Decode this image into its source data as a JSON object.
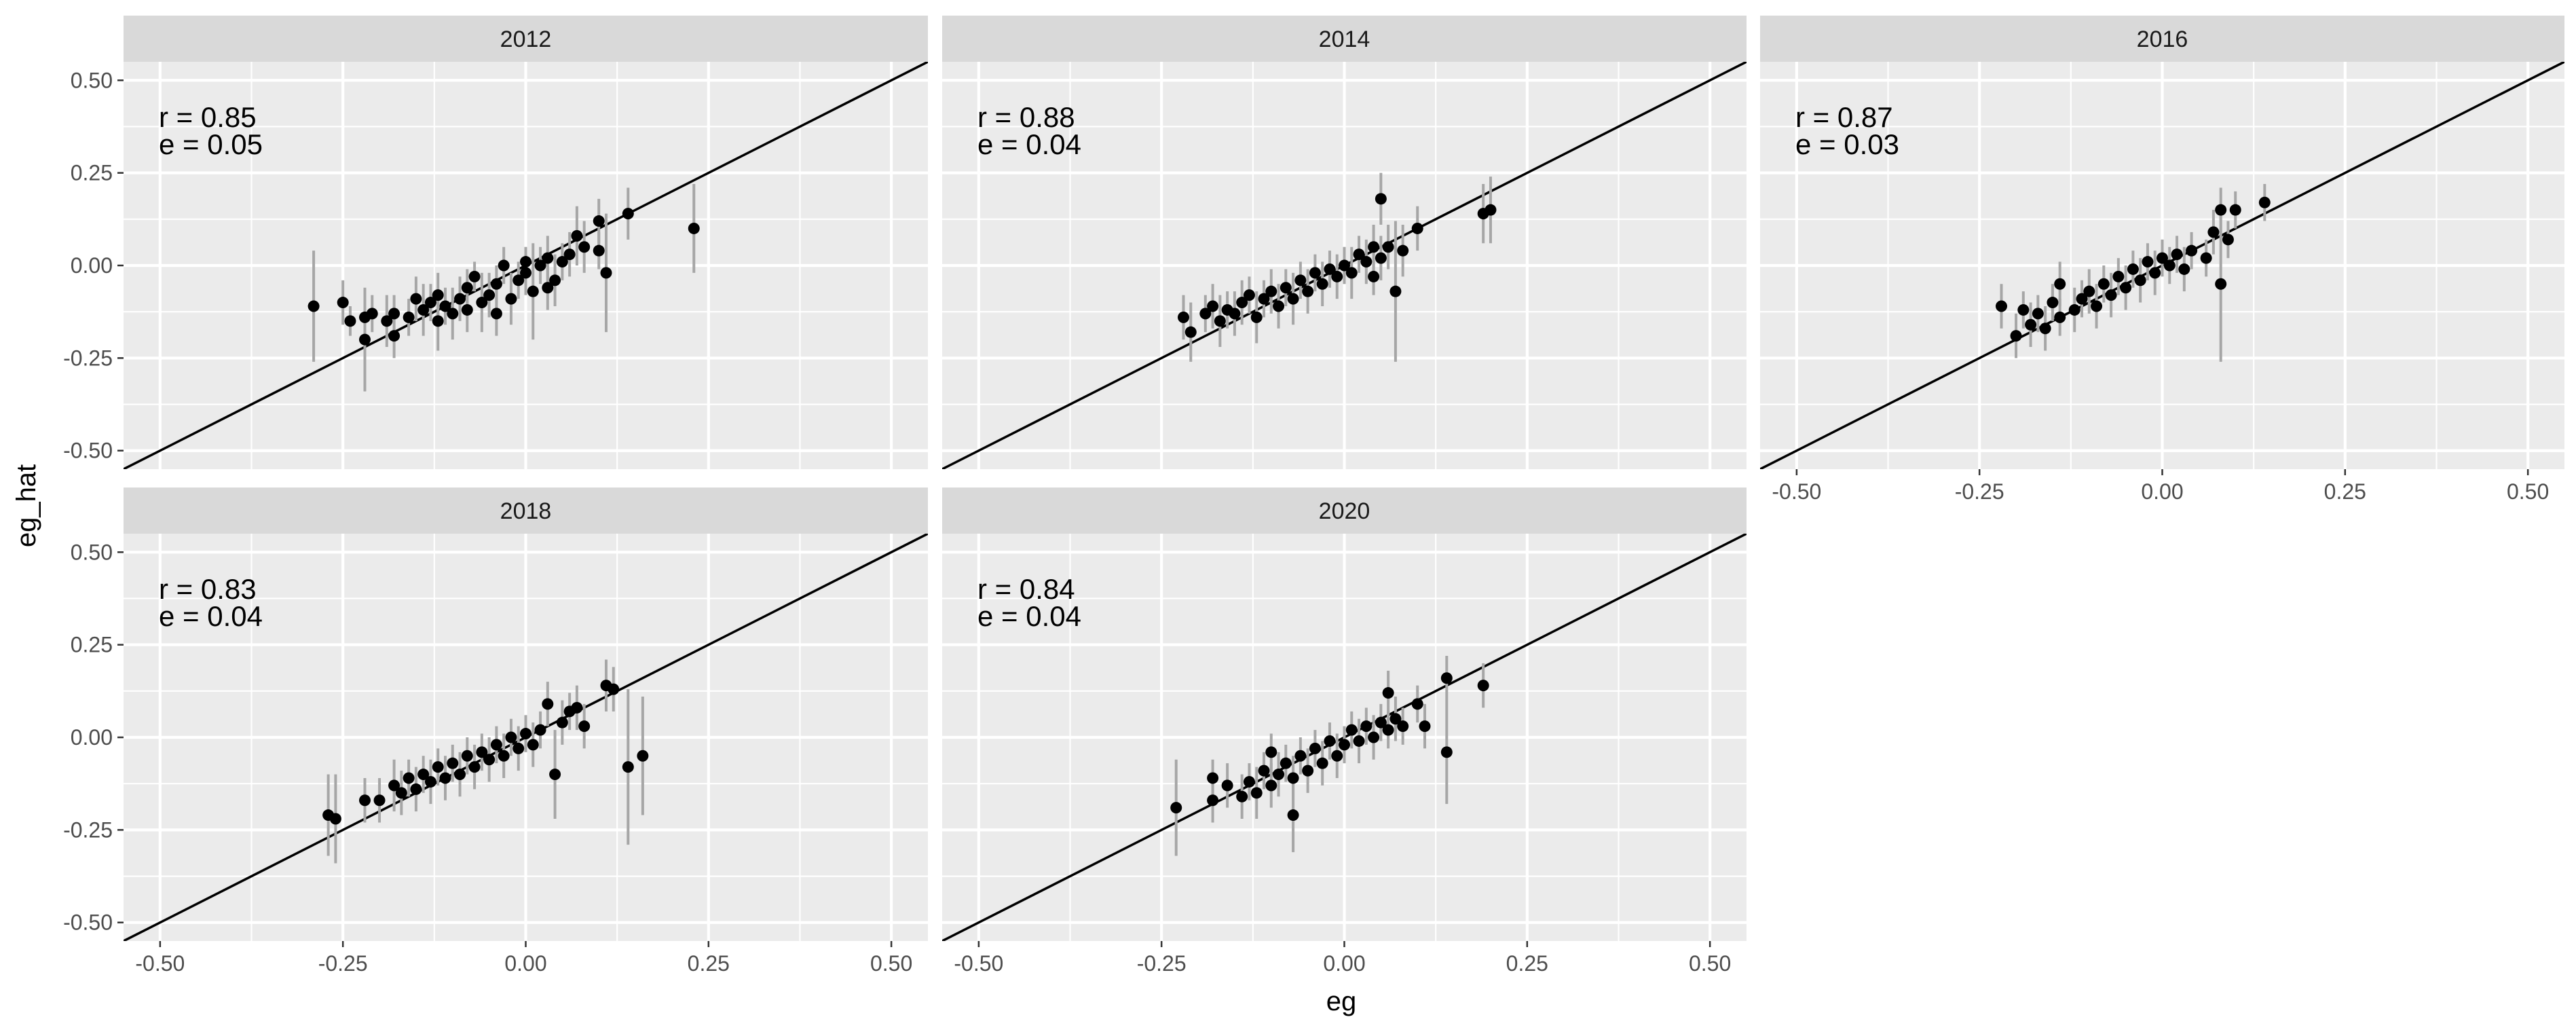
{
  "chart_data": {
    "type": "scatter",
    "xlabel": "eg",
    "ylabel": "eg_hat",
    "xlim": [
      -0.55,
      0.55
    ],
    "ylim": [
      -0.55,
      0.55
    ],
    "x_ticks": [
      "-0.50",
      "-0.25",
      "0.00",
      "0.25",
      "0.50"
    ],
    "y_ticks": [
      "-0.50",
      "-0.25",
      "0.00",
      "0.25",
      "0.50"
    ],
    "x_tick_values": [
      -0.5,
      -0.25,
      0,
      0.25,
      0.5
    ],
    "y_tick_values": [
      -0.5,
      -0.25,
      0,
      0.25,
      0.5
    ],
    "reference_line": {
      "slope": 1,
      "intercept": 0
    },
    "grid": true,
    "colors": {
      "points": "#000000",
      "error_bars": "#a6a6a6",
      "panel": "#ebebeb",
      "strip": "#d9d9d9"
    },
    "panels": [
      {
        "title": "2012",
        "annotation_r": "r = 0.85",
        "annotation_e": "e = 0.05",
        "points": [
          {
            "x": -0.29,
            "y": -0.11,
            "err": 0.15
          },
          {
            "x": -0.25,
            "y": -0.1,
            "err": 0.06
          },
          {
            "x": -0.24,
            "y": -0.15,
            "err": 0.04
          },
          {
            "x": -0.22,
            "y": -0.2,
            "err": 0.14
          },
          {
            "x": -0.22,
            "y": -0.14,
            "err": 0.06
          },
          {
            "x": -0.21,
            "y": -0.13,
            "err": 0.05
          },
          {
            "x": -0.19,
            "y": -0.15,
            "err": 0.07
          },
          {
            "x": -0.18,
            "y": -0.19,
            "err": 0.06
          },
          {
            "x": -0.18,
            "y": -0.13,
            "err": 0.05
          },
          {
            "x": -0.16,
            "y": -0.14,
            "err": 0.05
          },
          {
            "x": -0.15,
            "y": -0.09,
            "err": 0.06
          },
          {
            "x": -0.14,
            "y": -0.12,
            "err": 0.07
          },
          {
            "x": -0.13,
            "y": -0.1,
            "err": 0.05
          },
          {
            "x": -0.12,
            "y": -0.15,
            "err": 0.08
          },
          {
            "x": -0.12,
            "y": -0.08,
            "err": 0.06
          },
          {
            "x": -0.11,
            "y": -0.11,
            "err": 0.05
          },
          {
            "x": -0.1,
            "y": -0.13,
            "err": 0.07
          },
          {
            "x": -0.09,
            "y": -0.09,
            "err": 0.06
          },
          {
            "x": -0.08,
            "y": -0.06,
            "err": 0.05
          },
          {
            "x": -0.08,
            "y": -0.12,
            "err": 0.06
          },
          {
            "x": -0.07,
            "y": -0.03,
            "err": 0.04
          },
          {
            "x": -0.06,
            "y": -0.1,
            "err": 0.08
          },
          {
            "x": -0.05,
            "y": -0.08,
            "err": 0.06
          },
          {
            "x": -0.04,
            "y": -0.05,
            "err": 0.05
          },
          {
            "x": -0.04,
            "y": -0.13,
            "err": 0.06
          },
          {
            "x": -0.03,
            "y": 0.0,
            "err": 0.05
          },
          {
            "x": -0.02,
            "y": -0.09,
            "err": 0.07
          },
          {
            "x": -0.01,
            "y": -0.04,
            "err": 0.05
          },
          {
            "x": 0.0,
            "y": -0.02,
            "err": 0.06
          },
          {
            "x": 0.0,
            "y": 0.01,
            "err": 0.04
          },
          {
            "x": 0.01,
            "y": -0.07,
            "err": 0.13
          },
          {
            "x": 0.02,
            "y": 0.0,
            "err": 0.05
          },
          {
            "x": 0.03,
            "y": -0.06,
            "err": 0.06
          },
          {
            "x": 0.03,
            "y": 0.02,
            "err": 0.06
          },
          {
            "x": 0.04,
            "y": -0.04,
            "err": 0.07
          },
          {
            "x": 0.05,
            "y": 0.01,
            "err": 0.05
          },
          {
            "x": 0.06,
            "y": 0.03,
            "err": 0.06
          },
          {
            "x": 0.07,
            "y": 0.08,
            "err": 0.08
          },
          {
            "x": 0.08,
            "y": 0.05,
            "err": 0.07
          },
          {
            "x": 0.1,
            "y": 0.12,
            "err": 0.06
          },
          {
            "x": 0.1,
            "y": 0.04,
            "err": 0.05
          },
          {
            "x": 0.11,
            "y": -0.02,
            "err": 0.16
          },
          {
            "x": 0.14,
            "y": 0.14,
            "err": 0.07
          },
          {
            "x": 0.23,
            "y": 0.1,
            "err": 0.12
          }
        ]
      },
      {
        "title": "2014",
        "annotation_r": "r = 0.88",
        "annotation_e": "e = 0.04",
        "points": [
          {
            "x": -0.22,
            "y": -0.14,
            "err": 0.06
          },
          {
            "x": -0.21,
            "y": -0.18,
            "err": 0.08
          },
          {
            "x": -0.19,
            "y": -0.13,
            "err": 0.05
          },
          {
            "x": -0.18,
            "y": -0.11,
            "err": 0.06
          },
          {
            "x": -0.17,
            "y": -0.15,
            "err": 0.07
          },
          {
            "x": -0.16,
            "y": -0.12,
            "err": 0.05
          },
          {
            "x": -0.15,
            "y": -0.13,
            "err": 0.06
          },
          {
            "x": -0.14,
            "y": -0.1,
            "err": 0.06
          },
          {
            "x": -0.13,
            "y": -0.08,
            "err": 0.05
          },
          {
            "x": -0.12,
            "y": -0.14,
            "err": 0.07
          },
          {
            "x": -0.11,
            "y": -0.09,
            "err": 0.05
          },
          {
            "x": -0.1,
            "y": -0.07,
            "err": 0.06
          },
          {
            "x": -0.09,
            "y": -0.11,
            "err": 0.06
          },
          {
            "x": -0.08,
            "y": -0.06,
            "err": 0.05
          },
          {
            "x": -0.07,
            "y": -0.09,
            "err": 0.07
          },
          {
            "x": -0.06,
            "y": -0.04,
            "err": 0.05
          },
          {
            "x": -0.05,
            "y": -0.07,
            "err": 0.06
          },
          {
            "x": -0.04,
            "y": -0.02,
            "err": 0.05
          },
          {
            "x": -0.03,
            "y": -0.05,
            "err": 0.06
          },
          {
            "x": -0.02,
            "y": -0.01,
            "err": 0.05
          },
          {
            "x": -0.01,
            "y": -0.03,
            "err": 0.06
          },
          {
            "x": 0.0,
            "y": 0.0,
            "err": 0.05
          },
          {
            "x": 0.01,
            "y": -0.02,
            "err": 0.07
          },
          {
            "x": 0.02,
            "y": 0.03,
            "err": 0.05
          },
          {
            "x": 0.03,
            "y": 0.01,
            "err": 0.06
          },
          {
            "x": 0.04,
            "y": 0.05,
            "err": 0.06
          },
          {
            "x": 0.04,
            "y": -0.03,
            "err": 0.05
          },
          {
            "x": 0.05,
            "y": 0.02,
            "err": 0.06
          },
          {
            "x": 0.05,
            "y": 0.18,
            "err": 0.07
          },
          {
            "x": 0.06,
            "y": 0.05,
            "err": 0.06
          },
          {
            "x": 0.07,
            "y": -0.07,
            "err": 0.19
          },
          {
            "x": 0.08,
            "y": 0.04,
            "err": 0.07
          },
          {
            "x": 0.1,
            "y": 0.1,
            "err": 0.06
          },
          {
            "x": 0.19,
            "y": 0.14,
            "err": 0.08
          },
          {
            "x": 0.2,
            "y": 0.15,
            "err": 0.09
          }
        ]
      },
      {
        "title": "2016",
        "annotation_r": "r = 0.87",
        "annotation_e": "e = 0.03",
        "points": [
          {
            "x": -0.22,
            "y": -0.11,
            "err": 0.06
          },
          {
            "x": -0.2,
            "y": -0.19,
            "err": 0.06
          },
          {
            "x": -0.19,
            "y": -0.12,
            "err": 0.05
          },
          {
            "x": -0.18,
            "y": -0.16,
            "err": 0.06
          },
          {
            "x": -0.17,
            "y": -0.13,
            "err": 0.05
          },
          {
            "x": -0.16,
            "y": -0.17,
            "err": 0.06
          },
          {
            "x": -0.15,
            "y": -0.1,
            "err": 0.05
          },
          {
            "x": -0.14,
            "y": -0.05,
            "err": 0.06
          },
          {
            "x": -0.14,
            "y": -0.14,
            "err": 0.05
          },
          {
            "x": -0.12,
            "y": -0.12,
            "err": 0.06
          },
          {
            "x": -0.11,
            "y": -0.09,
            "err": 0.05
          },
          {
            "x": -0.1,
            "y": -0.07,
            "err": 0.06
          },
          {
            "x": -0.09,
            "y": -0.11,
            "err": 0.06
          },
          {
            "x": -0.08,
            "y": -0.05,
            "err": 0.05
          },
          {
            "x": -0.07,
            "y": -0.08,
            "err": 0.06
          },
          {
            "x": -0.06,
            "y": -0.03,
            "err": 0.05
          },
          {
            "x": -0.05,
            "y": -0.06,
            "err": 0.06
          },
          {
            "x": -0.04,
            "y": -0.01,
            "err": 0.05
          },
          {
            "x": -0.03,
            "y": -0.04,
            "err": 0.06
          },
          {
            "x": -0.02,
            "y": 0.01,
            "err": 0.05
          },
          {
            "x": -0.01,
            "y": -0.02,
            "err": 0.06
          },
          {
            "x": 0.0,
            "y": 0.02,
            "err": 0.05
          },
          {
            "x": 0.01,
            "y": 0.0,
            "err": 0.05
          },
          {
            "x": 0.02,
            "y": 0.03,
            "err": 0.05
          },
          {
            "x": 0.03,
            "y": -0.01,
            "err": 0.06
          },
          {
            "x": 0.04,
            "y": 0.04,
            "err": 0.05
          },
          {
            "x": 0.06,
            "y": 0.02,
            "err": 0.05
          },
          {
            "x": 0.07,
            "y": 0.09,
            "err": 0.06
          },
          {
            "x": 0.08,
            "y": -0.05,
            "err": 0.21
          },
          {
            "x": 0.08,
            "y": 0.15,
            "err": 0.06
          },
          {
            "x": 0.09,
            "y": 0.07,
            "err": 0.05
          },
          {
            "x": 0.1,
            "y": 0.15,
            "err": 0.05
          },
          {
            "x": 0.14,
            "y": 0.17,
            "err": 0.05
          }
        ]
      },
      {
        "title": "2018",
        "annotation_r": "r = 0.83",
        "annotation_e": "e = 0.04",
        "points": [
          {
            "x": -0.27,
            "y": -0.21,
            "err": 0.11
          },
          {
            "x": -0.26,
            "y": -0.22,
            "err": 0.12
          },
          {
            "x": -0.22,
            "y": -0.17,
            "err": 0.06
          },
          {
            "x": -0.2,
            "y": -0.17,
            "err": 0.06
          },
          {
            "x": -0.18,
            "y": -0.13,
            "err": 0.07
          },
          {
            "x": -0.17,
            "y": -0.15,
            "err": 0.06
          },
          {
            "x": -0.16,
            "y": -0.11,
            "err": 0.05
          },
          {
            "x": -0.15,
            "y": -0.14,
            "err": 0.06
          },
          {
            "x": -0.14,
            "y": -0.1,
            "err": 0.05
          },
          {
            "x": -0.13,
            "y": -0.12,
            "err": 0.06
          },
          {
            "x": -0.12,
            "y": -0.08,
            "err": 0.05
          },
          {
            "x": -0.11,
            "y": -0.11,
            "err": 0.06
          },
          {
            "x": -0.1,
            "y": -0.07,
            "err": 0.05
          },
          {
            "x": -0.09,
            "y": -0.1,
            "err": 0.06
          },
          {
            "x": -0.08,
            "y": -0.05,
            "err": 0.05
          },
          {
            "x": -0.07,
            "y": -0.08,
            "err": 0.06
          },
          {
            "x": -0.06,
            "y": -0.04,
            "err": 0.05
          },
          {
            "x": -0.05,
            "y": -0.06,
            "err": 0.06
          },
          {
            "x": -0.04,
            "y": -0.02,
            "err": 0.05
          },
          {
            "x": -0.03,
            "y": -0.05,
            "err": 0.06
          },
          {
            "x": -0.02,
            "y": 0.0,
            "err": 0.05
          },
          {
            "x": -0.01,
            "y": -0.03,
            "err": 0.06
          },
          {
            "x": 0.0,
            "y": 0.01,
            "err": 0.05
          },
          {
            "x": 0.01,
            "y": -0.02,
            "err": 0.06
          },
          {
            "x": 0.02,
            "y": 0.02,
            "err": 0.05
          },
          {
            "x": 0.03,
            "y": 0.09,
            "err": 0.06
          },
          {
            "x": 0.04,
            "y": -0.1,
            "err": 0.12
          },
          {
            "x": 0.05,
            "y": 0.04,
            "err": 0.06
          },
          {
            "x": 0.06,
            "y": 0.07,
            "err": 0.05
          },
          {
            "x": 0.07,
            "y": 0.08,
            "err": 0.06
          },
          {
            "x": 0.08,
            "y": 0.03,
            "err": 0.06
          },
          {
            "x": 0.11,
            "y": 0.14,
            "err": 0.07
          },
          {
            "x": 0.12,
            "y": 0.13,
            "err": 0.06
          },
          {
            "x": 0.14,
            "y": -0.08,
            "err": 0.21
          },
          {
            "x": 0.16,
            "y": -0.05,
            "err": 0.16
          }
        ]
      },
      {
        "title": "2020",
        "annotation_r": "r = 0.84",
        "annotation_e": "e = 0.04",
        "points": [
          {
            "x": -0.23,
            "y": -0.19,
            "err": 0.13
          },
          {
            "x": -0.18,
            "y": -0.17,
            "err": 0.06
          },
          {
            "x": -0.18,
            "y": -0.11,
            "err": 0.05
          },
          {
            "x": -0.16,
            "y": -0.13,
            "err": 0.06
          },
          {
            "x": -0.14,
            "y": -0.16,
            "err": 0.06
          },
          {
            "x": -0.13,
            "y": -0.12,
            "err": 0.05
          },
          {
            "x": -0.12,
            "y": -0.15,
            "err": 0.07
          },
          {
            "x": -0.11,
            "y": -0.09,
            "err": 0.05
          },
          {
            "x": -0.1,
            "y": -0.13,
            "err": 0.06
          },
          {
            "x": -0.1,
            "y": -0.04,
            "err": 0.05
          },
          {
            "x": -0.09,
            "y": -0.1,
            "err": 0.06
          },
          {
            "x": -0.08,
            "y": -0.07,
            "err": 0.05
          },
          {
            "x": -0.07,
            "y": -0.21,
            "err": 0.1
          },
          {
            "x": -0.07,
            "y": -0.11,
            "err": 0.06
          },
          {
            "x": -0.06,
            "y": -0.05,
            "err": 0.05
          },
          {
            "x": -0.05,
            "y": -0.09,
            "err": 0.06
          },
          {
            "x": -0.04,
            "y": -0.03,
            "err": 0.05
          },
          {
            "x": -0.03,
            "y": -0.07,
            "err": 0.06
          },
          {
            "x": -0.02,
            "y": -0.01,
            "err": 0.05
          },
          {
            "x": -0.01,
            "y": -0.05,
            "err": 0.06
          },
          {
            "x": 0.0,
            "y": -0.02,
            "err": 0.05
          },
          {
            "x": 0.01,
            "y": 0.02,
            "err": 0.05
          },
          {
            "x": 0.02,
            "y": -0.01,
            "err": 0.06
          },
          {
            "x": 0.03,
            "y": 0.03,
            "err": 0.05
          },
          {
            "x": 0.04,
            "y": 0.0,
            "err": 0.06
          },
          {
            "x": 0.05,
            "y": 0.04,
            "err": 0.05
          },
          {
            "x": 0.06,
            "y": 0.12,
            "err": 0.06
          },
          {
            "x": 0.06,
            "y": 0.02,
            "err": 0.05
          },
          {
            "x": 0.07,
            "y": 0.05,
            "err": 0.06
          },
          {
            "x": 0.08,
            "y": 0.03,
            "err": 0.05
          },
          {
            "x": 0.1,
            "y": 0.09,
            "err": 0.05
          },
          {
            "x": 0.11,
            "y": 0.03,
            "err": 0.06
          },
          {
            "x": 0.14,
            "y": 0.16,
            "err": 0.06
          },
          {
            "x": 0.14,
            "y": -0.04,
            "err": 0.14
          },
          {
            "x": 0.19,
            "y": 0.14,
            "err": 0.06
          }
        ]
      }
    ]
  }
}
